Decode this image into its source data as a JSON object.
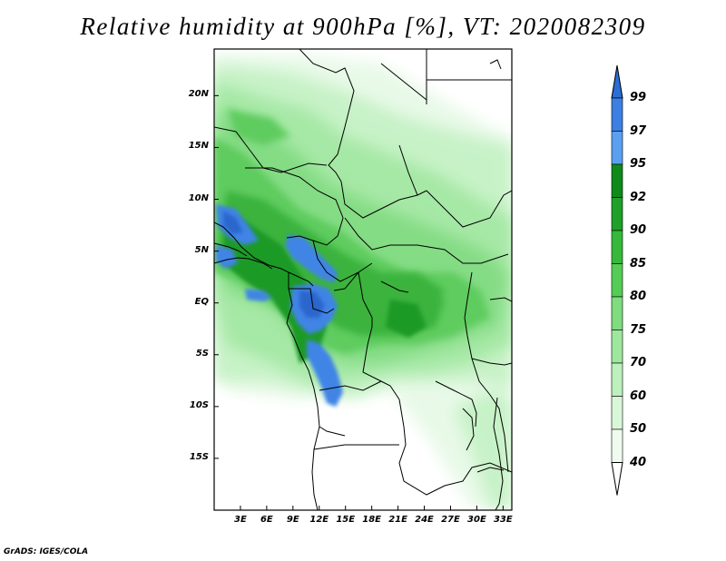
{
  "title": "Relative humidity at 900hPa [%], VT: 2020082309",
  "credit": "GrADS: IGES/COLA",
  "map": {
    "projection": "lat-lon",
    "lon_range": [
      0,
      34
    ],
    "lat_range": [
      -20,
      24.5
    ],
    "lat_ticks": [
      {
        "value": 20,
        "label": "20N"
      },
      {
        "value": 15,
        "label": "15N"
      },
      {
        "value": 10,
        "label": "10N"
      },
      {
        "value": 5,
        "label": "5N"
      },
      {
        "value": 0,
        "label": "EQ"
      },
      {
        "value": -5,
        "label": "5S"
      },
      {
        "value": -10,
        "label": "10S"
      },
      {
        "value": -15,
        "label": "15S"
      }
    ],
    "lon_ticks": [
      {
        "value": 3,
        "label": "3E"
      },
      {
        "value": 6,
        "label": "6E"
      },
      {
        "value": 9,
        "label": "9E"
      },
      {
        "value": 12,
        "label": "12E"
      },
      {
        "value": 15,
        "label": "15E"
      },
      {
        "value": 18,
        "label": "18E"
      },
      {
        "value": 21,
        "label": "21E"
      },
      {
        "value": 24,
        "label": "24E"
      },
      {
        "value": 27,
        "label": "27E"
      },
      {
        "value": 30,
        "label": "30E"
      },
      {
        "value": 33,
        "label": "33E"
      }
    ]
  },
  "colorbar": {
    "levels": [
      "99",
      "97",
      "95",
      "92",
      "90",
      "85",
      "80",
      "75",
      "70",
      "60",
      "50",
      "40"
    ],
    "colors": [
      "#2b6fd6",
      "#3d7fe2",
      "#5aa0f0",
      "#0f8a1a",
      "#1fa028",
      "#36b93a",
      "#55cc55",
      "#7fdc7f",
      "#9ee89e",
      "#bcf0bc",
      "#d8f7d8",
      "#eefbee"
    ]
  }
}
